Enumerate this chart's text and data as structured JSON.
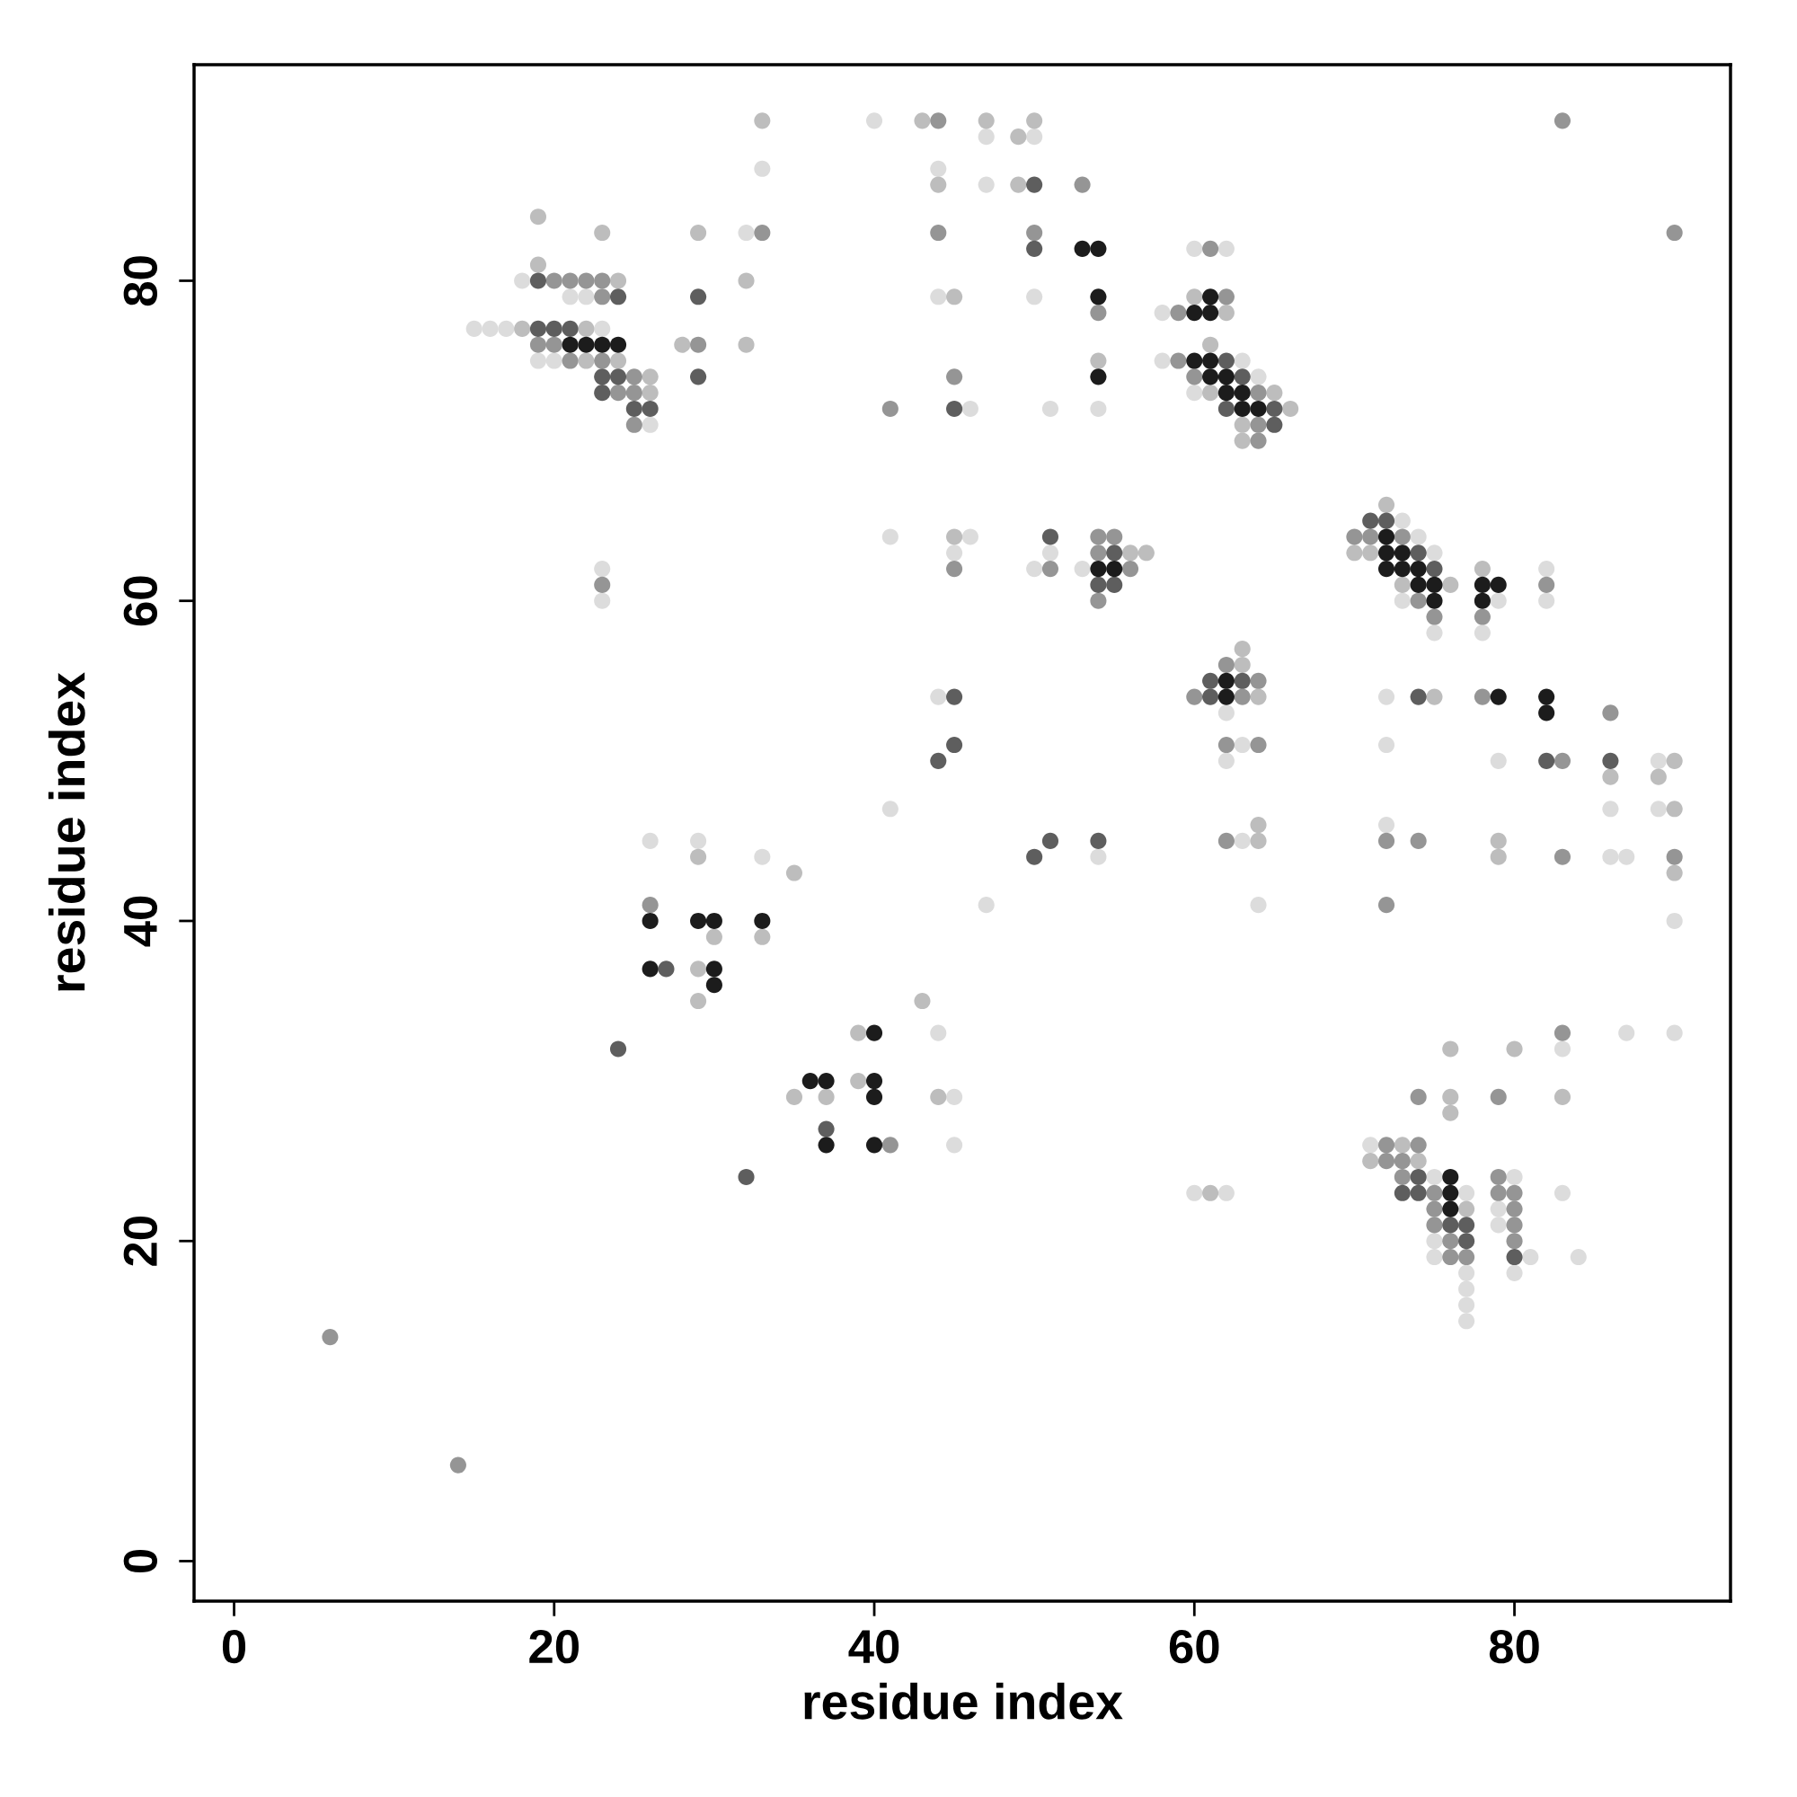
{
  "chart_data": {
    "type": "scatter",
    "xlabel": "residue index",
    "ylabel": "residue index",
    "xlim": [
      -2.5,
      93.5
    ],
    "ylim": [
      -2.5,
      93.5
    ],
    "xticks": [
      0,
      20,
      40,
      60,
      80
    ],
    "yticks": [
      0,
      20,
      40,
      60,
      80
    ],
    "grid": false,
    "marker": "circle",
    "series": [
      {
        "color": "#dcdcdc",
        "x": [
          40,
          47,
          50,
          33,
          44,
          47,
          32,
          18,
          21,
          22,
          15,
          16,
          17,
          23,
          19,
          20,
          60,
          62,
          44,
          50,
          58,
          58,
          63,
          64,
          60,
          46,
          51,
          54,
          73,
          41,
          46,
          74,
          45,
          51,
          75,
          50,
          53,
          82,
          79,
          73,
          82,
          75,
          78,
          44,
          72,
          62,
          63,
          72,
          62,
          79,
          89,
          89,
          41,
          86,
          72,
          63,
          54,
          86,
          87,
          47,
          64,
          90,
          26,
          29,
          33,
          23,
          23,
          26,
          45,
          45,
          44,
          60,
          62,
          87,
          90,
          83,
          71,
          75,
          80,
          77,
          83,
          79,
          79,
          75,
          75,
          81,
          84,
          77,
          80,
          77,
          77,
          77
        ],
        "values": [
          90,
          89,
          89,
          87,
          87,
          86,
          83,
          80,
          79,
          79,
          77,
          77,
          77,
          77,
          75,
          75,
          82,
          82,
          79,
          79,
          78,
          75,
          75,
          74,
          73,
          72,
          72,
          72,
          65,
          64,
          64,
          64,
          63,
          63,
          63,
          62,
          62,
          62,
          60,
          60,
          60,
          58,
          58,
          54,
          54,
          53,
          51,
          51,
          50,
          50,
          50,
          47,
          47,
          47,
          46,
          45,
          44,
          44,
          44,
          41,
          41,
          40,
          45,
          45,
          44,
          62,
          60,
          71,
          29,
          26,
          33,
          23,
          23,
          33,
          33,
          32,
          26,
          24,
          24,
          23,
          23,
          22,
          21,
          20,
          19,
          19,
          19,
          18,
          18,
          17,
          16,
          15
        ]
      },
      {
        "color": "#bdbdbd",
        "x": [
          33,
          43,
          47,
          50,
          49,
          44,
          49,
          19,
          23,
          29,
          19,
          24,
          32,
          18,
          22,
          28,
          32,
          22,
          24,
          26,
          26,
          45,
          60,
          62,
          61,
          54,
          61,
          65,
          66,
          63,
          63,
          72,
          45,
          70,
          71,
          56,
          57,
          78,
          73,
          76,
          63,
          63,
          64,
          75,
          90,
          86,
          89,
          90,
          64,
          64,
          79,
          79,
          90,
          29,
          35,
          30,
          33,
          29,
          29,
          43,
          39,
          39,
          35,
          37,
          44,
          76,
          80,
          76,
          83,
          76,
          73,
          71,
          74,
          61,
          77
        ],
        "values": [
          90,
          90,
          90,
          90,
          89,
          86,
          86,
          84,
          83,
          83,
          81,
          80,
          80,
          77,
          77,
          76,
          76,
          75,
          75,
          74,
          73,
          79,
          79,
          78,
          76,
          75,
          73,
          73,
          72,
          71,
          70,
          66,
          64,
          63,
          63,
          63,
          63,
          62,
          61,
          61,
          57,
          56,
          54,
          54,
          50,
          49,
          49,
          47,
          46,
          45,
          45,
          44,
          43,
          44,
          43,
          39,
          39,
          37,
          35,
          35,
          33,
          30,
          29,
          29,
          29,
          32,
          32,
          29,
          29,
          28,
          26,
          25,
          25,
          23,
          22
        ]
      },
      {
        "color": "#959595",
        "x": [
          44,
          53,
          33,
          50,
          44,
          20,
          21,
          22,
          23,
          23,
          19,
          20,
          29,
          21,
          23,
          25,
          25,
          24,
          25,
          61,
          62,
          54,
          59,
          59,
          45,
          60,
          64,
          41,
          64,
          64,
          54,
          55,
          70,
          71,
          73,
          54,
          45,
          51,
          56,
          82,
          54,
          74,
          75,
          78,
          62,
          64,
          60,
          63,
          78,
          86,
          62,
          64,
          83,
          62,
          72,
          74,
          83,
          90,
          72,
          23,
          26,
          41,
          83,
          74,
          79,
          72,
          74,
          72,
          73,
          73,
          79,
          75,
          79,
          80,
          75,
          80,
          75,
          80,
          76,
          80,
          76,
          77,
          6,
          14,
          90,
          83
        ],
        "values": [
          90,
          86,
          83,
          83,
          83,
          80,
          80,
          80,
          80,
          79,
          76,
          76,
          76,
          75,
          75,
          74,
          73,
          73,
          71,
          82,
          79,
          78,
          78,
          75,
          74,
          74,
          73,
          72,
          71,
          70,
          64,
          64,
          64,
          64,
          64,
          63,
          62,
          62,
          62,
          61,
          60,
          60,
          59,
          59,
          56,
          55,
          54,
          54,
          54,
          53,
          51,
          51,
          50,
          45,
          45,
          45,
          44,
          44,
          41,
          61,
          41,
          26,
          33,
          29,
          29,
          26,
          26,
          25,
          25,
          24,
          24,
          23,
          23,
          23,
          22,
          22,
          21,
          21,
          20,
          20,
          19,
          19,
          14,
          6,
          83,
          90
        ]
      },
      {
        "color": "#5e5e5e",
        "x": [
          50,
          19,
          24,
          29,
          19,
          20,
          21,
          23,
          24,
          29,
          23,
          25,
          26,
          62,
          45,
          63,
          62,
          65,
          65,
          71,
          72,
          51,
          55,
          74,
          75,
          54,
          55,
          61,
          63,
          61,
          45,
          74,
          45,
          44,
          82,
          86,
          51,
          54,
          50,
          27,
          37,
          24,
          32,
          74,
          73,
          74,
          76,
          77,
          77,
          80,
          50
        ],
        "values": [
          86,
          80,
          79,
          79,
          77,
          77,
          77,
          74,
          74,
          74,
          73,
          72,
          72,
          75,
          72,
          74,
          72,
          72,
          71,
          65,
          65,
          64,
          63,
          63,
          62,
          61,
          61,
          55,
          55,
          54,
          54,
          54,
          51,
          50,
          50,
          50,
          45,
          45,
          44,
          37,
          27,
          32,
          24,
          24,
          23,
          23,
          21,
          21,
          20,
          19,
          82
        ]
      },
      {
        "color": "#1c1c1c",
        "x": [
          21,
          22,
          23,
          24,
          53,
          54,
          54,
          61,
          60,
          61,
          60,
          61,
          54,
          61,
          62,
          62,
          63,
          63,
          64,
          72,
          72,
          73,
          54,
          55,
          72,
          73,
          74,
          74,
          75,
          78,
          79,
          75,
          78,
          62,
          62,
          79,
          82,
          82,
          26,
          29,
          30,
          33,
          26,
          30,
          30,
          40,
          36,
          37,
          40,
          40,
          37,
          40,
          76,
          76,
          76
        ],
        "values": [
          76,
          76,
          76,
          76,
          82,
          82,
          79,
          79,
          78,
          78,
          75,
          75,
          74,
          74,
          74,
          73,
          73,
          72,
          72,
          64,
          63,
          63,
          62,
          62,
          62,
          62,
          62,
          61,
          61,
          61,
          61,
          60,
          60,
          55,
          54,
          54,
          54,
          53,
          40,
          40,
          40,
          40,
          37,
          37,
          36,
          33,
          30,
          30,
          30,
          29,
          26,
          26,
          24,
          23,
          22
        ]
      }
    ]
  }
}
